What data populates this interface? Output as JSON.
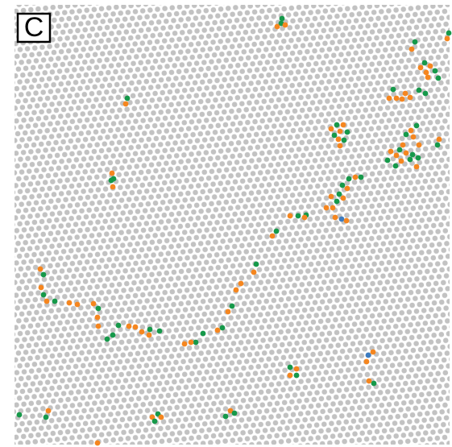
{
  "panel": {
    "label": "C"
  }
}
